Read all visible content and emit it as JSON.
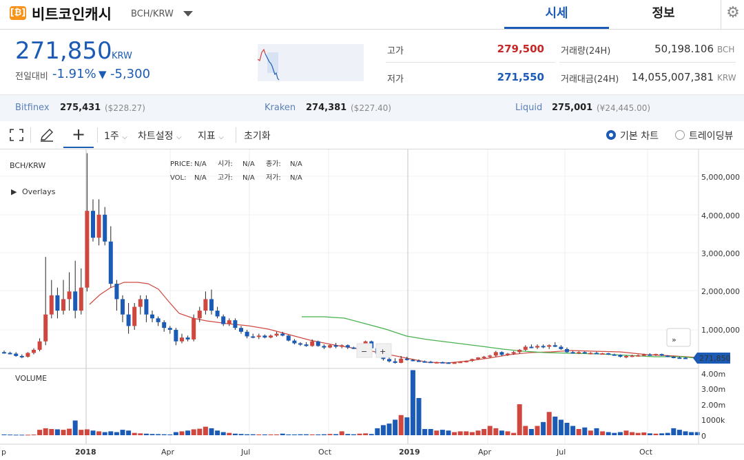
{
  "header": {
    "coin_name": "비트코인캐시",
    "pair": "BCH/KRW",
    "tabs": [
      {
        "label": "시세",
        "active": true
      },
      {
        "label": "정보",
        "active": false
      }
    ]
  },
  "price": {
    "current": "271,850",
    "unit": "KRW",
    "change_label": "전일대비",
    "change_pct": "-1.91%",
    "change_amt": "-5,300",
    "direction_arrow": "▼"
  },
  "stats": {
    "high_label": "고가",
    "high": "279,500",
    "low_label": "저가",
    "low": "271,550",
    "volume_label": "거래량(24H)",
    "volume": "50,198.106",
    "volume_unit": "BCH",
    "amount_label": "거래대금(24H)",
    "amount": "14,055,007,381",
    "amount_unit": "KRW"
  },
  "exchanges": [
    {
      "name": "Bitfinex",
      "price": "275,431",
      "foreign": "($228.27)"
    },
    {
      "name": "Kraken",
      "price": "274,381",
      "foreign": "($227.40)"
    },
    {
      "name": "Liquid",
      "price": "275,001",
      "foreign": "(¥24,445.00)"
    }
  ],
  "toolbar": {
    "period": "1주",
    "chart_settings": "차트설정",
    "indicators": "지표",
    "reset": "초기화",
    "basic_chart": "기본 차트",
    "tradingview": "트레이딩뷰"
  },
  "chart": {
    "symbol": "BCH/KRW",
    "overlays_label": "Overlays",
    "volume_label": "VOLUME",
    "last_price_tag": "271,850",
    "ohlc_labels": {
      "price": "PRICE:",
      "open": "시가:",
      "close": "종가:",
      "vol": "VOL:",
      "high": "고가:",
      "low": "저가:"
    },
    "ohlc_values": {
      "price": "N/A",
      "open": "N/A",
      "close": "N/A",
      "vol": "N/A",
      "high": "N/A",
      "low": "N/A"
    },
    "price_axis": [
      "5,000,000",
      "4,000,000",
      "3,000,000",
      "2,000,000",
      "1,000,000"
    ],
    "volume_axis": [
      "4.00m",
      "3.00m",
      "2.00m",
      "1000k",
      "0"
    ],
    "time_axis": [
      {
        "label": "p",
        "bold": false
      },
      {
        "label": "2018",
        "bold": true
      },
      {
        "label": "Apr",
        "bold": false
      },
      {
        "label": "Jul",
        "bold": false
      },
      {
        "label": "Oct",
        "bold": false
      },
      {
        "label": "2019",
        "bold": true
      },
      {
        "label": "Apr",
        "bold": false
      },
      {
        "label": "Jul",
        "bold": false
      },
      {
        "label": "Oct",
        "bold": false
      }
    ],
    "zoom_out": "−",
    "zoom_in": "+",
    "scroll_right": "»"
  },
  "chart_data": {
    "type": "candlestick",
    "interval": "1 week",
    "ylim": [
      0,
      5500000
    ],
    "candles": [
      {
        "o": 420000,
        "h": 460000,
        "l": 380000,
        "c": 400000
      },
      {
        "o": 400000,
        "h": 430000,
        "l": 360000,
        "c": 380000
      },
      {
        "o": 380000,
        "h": 420000,
        "l": 300000,
        "c": 320000
      },
      {
        "o": 320000,
        "h": 360000,
        "l": 260000,
        "c": 300000
      },
      {
        "o": 300000,
        "h": 420000,
        "l": 280000,
        "c": 400000
      },
      {
        "o": 400000,
        "h": 520000,
        "l": 360000,
        "c": 480000
      },
      {
        "o": 480000,
        "h": 780000,
        "l": 440000,
        "c": 700000
      },
      {
        "o": 700000,
        "h": 2900000,
        "l": 600000,
        "c": 1400000
      },
      {
        "o": 1400000,
        "h": 2300000,
        "l": 1300000,
        "c": 1900000
      },
      {
        "o": 1900000,
        "h": 2100000,
        "l": 1300000,
        "c": 1500000
      },
      {
        "o": 1500000,
        "h": 2300000,
        "l": 1400000,
        "c": 1800000
      },
      {
        "o": 1800000,
        "h": 2500000,
        "l": 1500000,
        "c": 2000000
      },
      {
        "o": 2000000,
        "h": 2800000,
        "l": 1300000,
        "c": 1500000
      },
      {
        "o": 1500000,
        "h": 2600000,
        "l": 1400000,
        "c": 2100000
      },
      {
        "o": 2100000,
        "h": 5600000,
        "l": 2000000,
        "c": 4100000
      },
      {
        "o": 4100000,
        "h": 4400000,
        "l": 3300000,
        "c": 3400000
      },
      {
        "o": 3400000,
        "h": 4400000,
        "l": 3200000,
        "c": 4000000
      },
      {
        "o": 4000000,
        "h": 4200000,
        "l": 3200000,
        "c": 3300000
      },
      {
        "o": 3300000,
        "h": 3700000,
        "l": 2100000,
        "c": 2200000
      },
      {
        "o": 2200000,
        "h": 2300000,
        "l": 1500000,
        "c": 1800000
      },
      {
        "o": 1800000,
        "h": 1900000,
        "l": 1200000,
        "c": 1400000
      },
      {
        "o": 1400000,
        "h": 1700000,
        "l": 900000,
        "c": 1100000
      },
      {
        "o": 1100000,
        "h": 1700000,
        "l": 1000000,
        "c": 1600000
      },
      {
        "o": 1600000,
        "h": 1900000,
        "l": 1400000,
        "c": 1800000
      },
      {
        "o": 1800000,
        "h": 1900000,
        "l": 1200000,
        "c": 1400000
      },
      {
        "o": 1400000,
        "h": 1500000,
        "l": 1200000,
        "c": 1300000
      },
      {
        "o": 1300000,
        "h": 1350000,
        "l": 1100000,
        "c": 1200000
      },
      {
        "o": 1200000,
        "h": 1250000,
        "l": 950000,
        "c": 1050000
      },
      {
        "o": 1050000,
        "h": 1100000,
        "l": 900000,
        "c": 1000000
      },
      {
        "o": 1000000,
        "h": 1050000,
        "l": 600000,
        "c": 700000
      },
      {
        "o": 700000,
        "h": 900000,
        "l": 650000,
        "c": 800000
      },
      {
        "o": 800000,
        "h": 850000,
        "l": 700000,
        "c": 750000
      },
      {
        "o": 750000,
        "h": 1400000,
        "l": 700000,
        "c": 1300000
      },
      {
        "o": 1300000,
        "h": 1600000,
        "l": 1200000,
        "c": 1500000
      },
      {
        "o": 1500000,
        "h": 2000000,
        "l": 1400000,
        "c": 1800000
      },
      {
        "o": 1800000,
        "h": 2050000,
        "l": 1400000,
        "c": 1500000
      },
      {
        "o": 1500000,
        "h": 1600000,
        "l": 1300000,
        "c": 1350000
      },
      {
        "o": 1350000,
        "h": 1400000,
        "l": 1100000,
        "c": 1150000
      },
      {
        "o": 1150000,
        "h": 1300000,
        "l": 1100000,
        "c": 1250000
      },
      {
        "o": 1250000,
        "h": 1300000,
        "l": 1000000,
        "c": 1050000
      },
      {
        "o": 1050000,
        "h": 1100000,
        "l": 900000,
        "c": 950000
      },
      {
        "o": 950000,
        "h": 1000000,
        "l": 780000,
        "c": 830000
      },
      {
        "o": 830000,
        "h": 900000,
        "l": 780000,
        "c": 820000
      },
      {
        "o": 820000,
        "h": 900000,
        "l": 760000,
        "c": 850000
      },
      {
        "o": 850000,
        "h": 880000,
        "l": 780000,
        "c": 800000
      },
      {
        "o": 800000,
        "h": 880000,
        "l": 780000,
        "c": 850000
      },
      {
        "o": 850000,
        "h": 950000,
        "l": 820000,
        "c": 900000
      },
      {
        "o": 900000,
        "h": 950000,
        "l": 830000,
        "c": 850000
      },
      {
        "o": 850000,
        "h": 870000,
        "l": 700000,
        "c": 720000
      },
      {
        "o": 720000,
        "h": 760000,
        "l": 620000,
        "c": 650000
      },
      {
        "o": 650000,
        "h": 680000,
        "l": 580000,
        "c": 620000
      },
      {
        "o": 620000,
        "h": 680000,
        "l": 560000,
        "c": 580000
      },
      {
        "o": 580000,
        "h": 750000,
        "l": 560000,
        "c": 700000
      },
      {
        "o": 700000,
        "h": 720000,
        "l": 560000,
        "c": 580000
      },
      {
        "o": 580000,
        "h": 620000,
        "l": 500000,
        "c": 540000
      },
      {
        "o": 540000,
        "h": 620000,
        "l": 520000,
        "c": 600000
      },
      {
        "o": 600000,
        "h": 660000,
        "l": 520000,
        "c": 560000
      },
      {
        "o": 560000,
        "h": 620000,
        "l": 520000,
        "c": 600000
      },
      {
        "o": 600000,
        "h": 620000,
        "l": 500000,
        "c": 540000
      },
      {
        "o": 540000,
        "h": 560000,
        "l": 500000,
        "c": 520000
      },
      {
        "o": 520000,
        "h": 600000,
        "l": 480000,
        "c": 560000
      },
      {
        "o": 560000,
        "h": 720000,
        "l": 500000,
        "c": 700000
      },
      {
        "o": 700000,
        "h": 720000,
        "l": 500000,
        "c": 520000
      },
      {
        "o": 520000,
        "h": 540000,
        "l": 350000,
        "c": 380000
      },
      {
        "o": 380000,
        "h": 420000,
        "l": 200000,
        "c": 240000
      },
      {
        "o": 240000,
        "h": 300000,
        "l": 150000,
        "c": 180000
      },
      {
        "o": 180000,
        "h": 260000,
        "l": 120000,
        "c": 140000
      },
      {
        "o": 140000,
        "h": 320000,
        "l": 130000,
        "c": 250000
      },
      {
        "o": 250000,
        "h": 300000,
        "l": 200000,
        "c": 220000
      },
      {
        "o": 220000,
        "h": 240000,
        "l": 180000,
        "c": 200000
      },
      {
        "o": 200000,
        "h": 230000,
        "l": 170000,
        "c": 180000
      },
      {
        "o": 180000,
        "h": 200000,
        "l": 150000,
        "c": 170000
      },
      {
        "o": 170000,
        "h": 190000,
        "l": 140000,
        "c": 150000
      },
      {
        "o": 150000,
        "h": 170000,
        "l": 140000,
        "c": 160000
      },
      {
        "o": 160000,
        "h": 170000,
        "l": 140000,
        "c": 150000
      },
      {
        "o": 150000,
        "h": 160000,
        "l": 130000,
        "c": 140000
      },
      {
        "o": 140000,
        "h": 160000,
        "l": 130000,
        "c": 150000
      },
      {
        "o": 150000,
        "h": 180000,
        "l": 140000,
        "c": 170000
      },
      {
        "o": 170000,
        "h": 200000,
        "l": 150000,
        "c": 190000
      },
      {
        "o": 190000,
        "h": 250000,
        "l": 170000,
        "c": 240000
      },
      {
        "o": 240000,
        "h": 290000,
        "l": 220000,
        "c": 280000
      },
      {
        "o": 280000,
        "h": 320000,
        "l": 250000,
        "c": 300000
      },
      {
        "o": 300000,
        "h": 350000,
        "l": 270000,
        "c": 330000
      },
      {
        "o": 330000,
        "h": 450000,
        "l": 300000,
        "c": 420000
      },
      {
        "o": 420000,
        "h": 440000,
        "l": 320000,
        "c": 350000
      },
      {
        "o": 350000,
        "h": 400000,
        "l": 320000,
        "c": 380000
      },
      {
        "o": 380000,
        "h": 450000,
        "l": 350000,
        "c": 420000
      },
      {
        "o": 420000,
        "h": 500000,
        "l": 380000,
        "c": 480000
      },
      {
        "o": 480000,
        "h": 600000,
        "l": 450000,
        "c": 560000
      },
      {
        "o": 560000,
        "h": 620000,
        "l": 520000,
        "c": 540000
      },
      {
        "o": 540000,
        "h": 620000,
        "l": 500000,
        "c": 580000
      },
      {
        "o": 580000,
        "h": 620000,
        "l": 520000,
        "c": 560000
      },
      {
        "o": 560000,
        "h": 620000,
        "l": 500000,
        "c": 600000
      },
      {
        "o": 600000,
        "h": 680000,
        "l": 550000,
        "c": 560000
      },
      {
        "o": 560000,
        "h": 600000,
        "l": 480000,
        "c": 500000
      },
      {
        "o": 500000,
        "h": 540000,
        "l": 400000,
        "c": 420000
      },
      {
        "o": 420000,
        "h": 450000,
        "l": 380000,
        "c": 400000
      },
      {
        "o": 400000,
        "h": 440000,
        "l": 370000,
        "c": 420000
      },
      {
        "o": 420000,
        "h": 440000,
        "l": 380000,
        "c": 390000
      },
      {
        "o": 390000,
        "h": 420000,
        "l": 360000,
        "c": 400000
      },
      {
        "o": 400000,
        "h": 430000,
        "l": 370000,
        "c": 380000
      },
      {
        "o": 380000,
        "h": 400000,
        "l": 360000,
        "c": 390000
      },
      {
        "o": 390000,
        "h": 400000,
        "l": 350000,
        "c": 360000
      },
      {
        "o": 360000,
        "h": 380000,
        "l": 330000,
        "c": 350000
      },
      {
        "o": 350000,
        "h": 360000,
        "l": 280000,
        "c": 300000
      },
      {
        "o": 300000,
        "h": 340000,
        "l": 260000,
        "c": 320000
      },
      {
        "o": 320000,
        "h": 350000,
        "l": 290000,
        "c": 330000
      },
      {
        "o": 330000,
        "h": 360000,
        "l": 300000,
        "c": 340000
      },
      {
        "o": 340000,
        "h": 380000,
        "l": 320000,
        "c": 360000
      },
      {
        "o": 360000,
        "h": 390000,
        "l": 330000,
        "c": 350000
      },
      {
        "o": 350000,
        "h": 380000,
        "l": 320000,
        "c": 370000
      },
      {
        "o": 370000,
        "h": 380000,
        "l": 320000,
        "c": 330000
      },
      {
        "o": 330000,
        "h": 340000,
        "l": 290000,
        "c": 300000
      },
      {
        "o": 300000,
        "h": 310000,
        "l": 260000,
        "c": 280000
      },
      {
        "o": 280000,
        "h": 300000,
        "l": 265000,
        "c": 275000
      },
      {
        "o": 275000,
        "h": 290000,
        "l": 260000,
        "c": 271850
      }
    ],
    "volumes": [
      0.05,
      0.04,
      0.03,
      0.03,
      0.03,
      0.04,
      0.35,
      0.45,
      0.4,
      0.38,
      0.35,
      0.42,
      0.95,
      0.35,
      0.38,
      0.3,
      0.25,
      0.2,
      0.25,
      0.2,
      0.35,
      0.3,
      0.15,
      0.12,
      0.1,
      0.08,
      0.07,
      0.06,
      0.05,
      0.2,
      0.25,
      0.3,
      0.38,
      0.42,
      0.55,
      0.45,
      0.3,
      0.2,
      0.15,
      0.1,
      0.08,
      0.06,
      0.06,
      0.05,
      0.05,
      0.05,
      0.05,
      0.1,
      0.05,
      0.05,
      0.06,
      0.06,
      0.05,
      0.05,
      0.06,
      0.08,
      0.07,
      0.25,
      0.08,
      0.06,
      0.1,
      0.12,
      0.08,
      0.45,
      0.65,
      0.75,
      1.0,
      1.3,
      1.15,
      4.2,
      2.4,
      0.4,
      0.4,
      0.3,
      0.35,
      0.3,
      0.2,
      0.25,
      0.25,
      0.2,
      0.3,
      0.4,
      0.6,
      0.45,
      0.3,
      0.25,
      0.15,
      2.0,
      0.6,
      0.4,
      0.6,
      0.85,
      1.5,
      1.2,
      1.0,
      0.8,
      0.6,
      0.4,
      0.5,
      0.3,
      0.45,
      0.25,
      0.2,
      0.15,
      0.2,
      0.3,
      0.2,
      0.15,
      0.18,
      0.12,
      0.1,
      0.12,
      0.15,
      0.45,
      0.35,
      0.25,
      0.2,
      0.2
    ],
    "ma_red": [
      [
        130,
        442
      ],
      [
        145,
        428
      ],
      [
        160,
        418
      ],
      [
        180,
        410
      ],
      [
        200,
        410
      ],
      [
        215,
        412
      ],
      [
        230,
        420
      ],
      [
        245,
        438
      ],
      [
        260,
        455
      ],
      [
        280,
        462
      ],
      [
        300,
        466
      ],
      [
        330,
        470
      ],
      [
        360,
        473
      ],
      [
        390,
        478
      ],
      [
        420,
        486
      ],
      [
        450,
        494
      ],
      [
        480,
        500
      ],
      [
        510,
        505
      ],
      [
        530,
        508
      ],
      [
        560,
        514
      ],
      [
        590,
        520
      ],
      [
        620,
        526
      ],
      [
        650,
        527
      ],
      [
        680,
        524
      ],
      [
        710,
        520
      ],
      [
        740,
        515
      ],
      [
        770,
        512
      ],
      [
        800,
        511
      ],
      [
        830,
        509
      ],
      [
        860,
        510
      ],
      [
        900,
        511
      ],
      [
        940,
        515
      ],
      [
        980,
        517
      ],
      [
        1010,
        519
      ]
    ],
    "ma_green": [
      [
        438,
        460
      ],
      [
        470,
        460
      ],
      [
        500,
        462
      ],
      [
        530,
        470
      ],
      [
        560,
        478
      ],
      [
        590,
        488
      ],
      [
        620,
        493
      ],
      [
        660,
        498
      ],
      [
        700,
        503
      ],
      [
        730,
        507
      ],
      [
        760,
        510
      ],
      [
        790,
        512
      ],
      [
        830,
        513
      ],
      [
        870,
        514
      ],
      [
        910,
        516
      ],
      [
        950,
        518
      ],
      [
        990,
        518
      ],
      [
        1010,
        520
      ]
    ]
  }
}
